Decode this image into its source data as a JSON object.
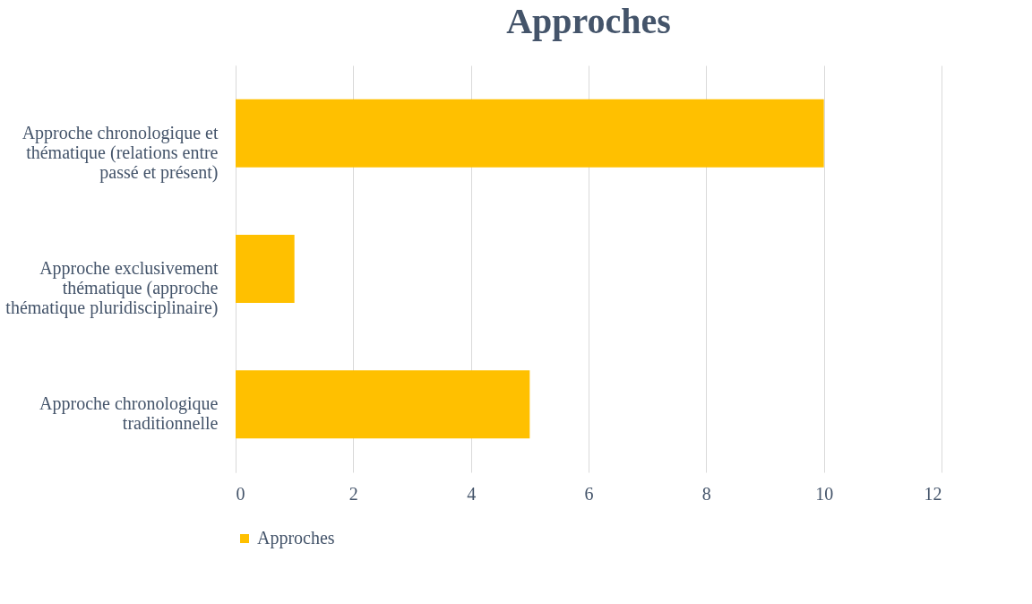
{
  "chart_data": {
    "type": "bar",
    "orientation": "horizontal",
    "title": "Approches",
    "categories": [
      "Approche chronologique et thématique (relations entre passé et présent)",
      "Approche exclusivement thématique (approche thématique pluridisciplinaire)",
      "Approche chronologique traditionnelle"
    ],
    "series": [
      {
        "name": "Approches",
        "color": "#ffc000",
        "values": [
          10,
          1,
          5
        ]
      }
    ],
    "xlim": [
      0,
      12
    ],
    "xticks": [
      0,
      2,
      4,
      6,
      8,
      10,
      12
    ],
    "grid": "x",
    "legend": "bottom"
  }
}
